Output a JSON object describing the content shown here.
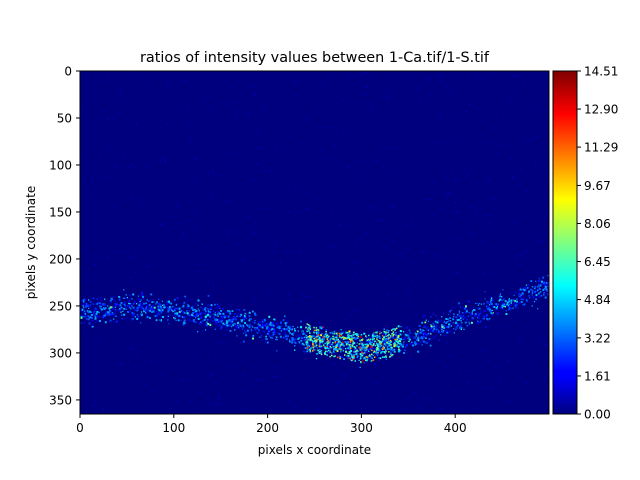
{
  "chart_data": {
    "type": "heatmap",
    "title": "ratios of intensity values between 1-Ca.tif/1-S.tif",
    "xlabel": "pixels x coordinate",
    "ylabel": "pixels y coordinate",
    "xlim": [
      0,
      500
    ],
    "ylim": [
      365,
      0
    ],
    "x_ticks": [
      0,
      100,
      200,
      300,
      400
    ],
    "y_ticks": [
      0,
      50,
      100,
      150,
      200,
      250,
      300,
      350
    ],
    "colormap": "jet",
    "colorbar": {
      "range": [
        0.0,
        14.51
      ],
      "ticks": [
        "0.00",
        "1.61",
        "3.22",
        "4.84",
        "6.45",
        "8.06",
        "9.67",
        "11.29",
        "12.90",
        "14.51"
      ]
    },
    "background_value": 0.0,
    "hotspot_band": [
      {
        "x": 0,
        "y": 255
      },
      {
        "x": 50,
        "y": 250
      },
      {
        "x": 100,
        "y": 255
      },
      {
        "x": 150,
        "y": 262
      },
      {
        "x": 200,
        "y": 275
      },
      {
        "x": 250,
        "y": 285
      },
      {
        "x": 300,
        "y": 295
      },
      {
        "x": 350,
        "y": 285
      },
      {
        "x": 400,
        "y": 265
      },
      {
        "x": 450,
        "y": 248
      },
      {
        "x": 500,
        "y": 225
      }
    ],
    "peak_region": {
      "x": [
        240,
        340
      ],
      "y": [
        265,
        310
      ],
      "max_value": 14.51
    },
    "grid": false,
    "legend": "none"
  }
}
